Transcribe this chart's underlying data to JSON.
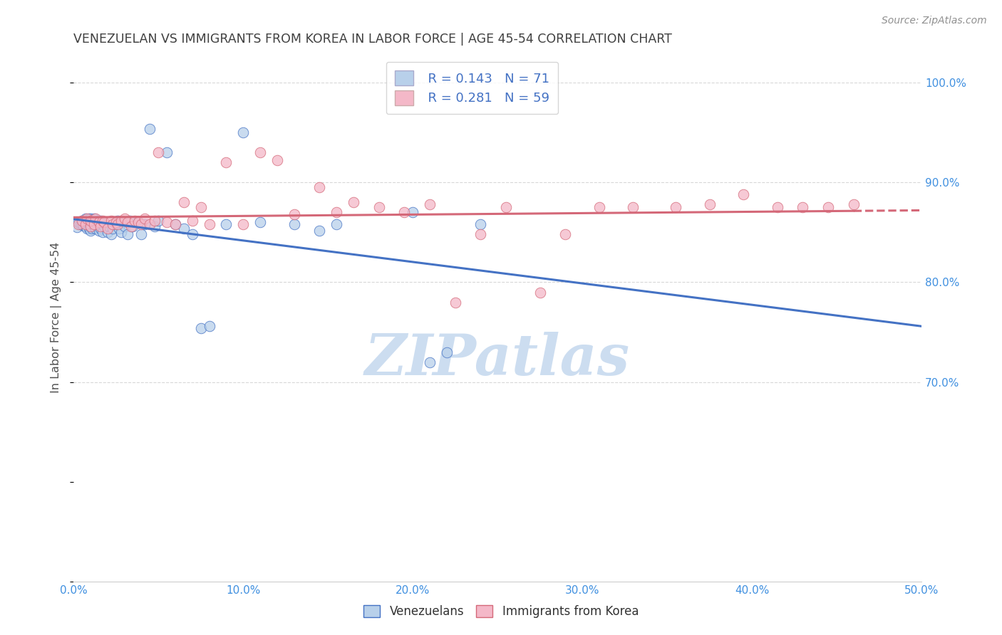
{
  "title": "VENEZUELAN VS IMMIGRANTS FROM KOREA IN LABOR FORCE | AGE 45-54 CORRELATION CHART",
  "source": "Source: ZipAtlas.com",
  "ylabel": "In Labor Force | Age 45-54",
  "xlim": [
    0.0,
    0.5
  ],
  "ylim": [
    0.5,
    1.03
  ],
  "xticks": [
    0.0,
    0.1,
    0.2,
    0.3,
    0.4,
    0.5
  ],
  "xtick_labels": [
    "0.0%",
    "10.0%",
    "20.0%",
    "30.0%",
    "40.0%",
    "50.0%"
  ],
  "yticks_right": [
    0.7,
    0.8,
    0.9,
    1.0
  ],
  "ytick_labels_right": [
    "70.0%",
    "80.0%",
    "90.0%",
    "100.0%"
  ],
  "legend_r1": "R = 0.143",
  "legend_n1": "N = 71",
  "legend_r2": "R = 0.281",
  "legend_n2": "N = 59",
  "color_blue": "#b8d0ea",
  "color_pink": "#f4b8c8",
  "line_color_blue": "#4472c4",
  "line_color_pink": "#d46878",
  "title_color": "#404040",
  "axis_label_color": "#505050",
  "tick_color": "#4090e0",
  "source_color": "#909090",
  "venezuelans_x": [
    0.002,
    0.003,
    0.004,
    0.005,
    0.005,
    0.006,
    0.006,
    0.007,
    0.007,
    0.007,
    0.008,
    0.008,
    0.008,
    0.009,
    0.009,
    0.009,
    0.01,
    0.01,
    0.01,
    0.01,
    0.011,
    0.011,
    0.012,
    0.012,
    0.012,
    0.013,
    0.013,
    0.014,
    0.014,
    0.015,
    0.015,
    0.016,
    0.016,
    0.017,
    0.017,
    0.018,
    0.019,
    0.02,
    0.021,
    0.022,
    0.023,
    0.025,
    0.026,
    0.027,
    0.028,
    0.03,
    0.032,
    0.033,
    0.035,
    0.038,
    0.04,
    0.042,
    0.045,
    0.048,
    0.05,
    0.055,
    0.06,
    0.065,
    0.07,
    0.075,
    0.08,
    0.09,
    0.1,
    0.11,
    0.13,
    0.145,
    0.155,
    0.2,
    0.21,
    0.22,
    0.24
  ],
  "venezuelans_y": [
    0.855,
    0.86,
    0.858,
    0.862,
    0.858,
    0.857,
    0.86,
    0.856,
    0.86,
    0.864,
    0.854,
    0.858,
    0.862,
    0.854,
    0.86,
    0.864,
    0.852,
    0.856,
    0.86,
    0.864,
    0.854,
    0.86,
    0.856,
    0.86,
    0.864,
    0.854,
    0.86,
    0.856,
    0.862,
    0.852,
    0.858,
    0.854,
    0.862,
    0.85,
    0.86,
    0.856,
    0.858,
    0.85,
    0.856,
    0.848,
    0.854,
    0.858,
    0.862,
    0.854,
    0.85,
    0.856,
    0.848,
    0.862,
    0.856,
    0.86,
    0.848,
    0.858,
    0.954,
    0.856,
    0.862,
    0.93,
    0.858,
    0.854,
    0.848,
    0.754,
    0.756,
    0.858,
    0.95,
    0.86,
    0.858,
    0.852,
    0.858,
    0.87,
    0.72,
    0.73,
    0.858
  ],
  "korea_x": [
    0.003,
    0.005,
    0.007,
    0.008,
    0.01,
    0.01,
    0.012,
    0.013,
    0.015,
    0.016,
    0.017,
    0.018,
    0.02,
    0.022,
    0.023,
    0.025,
    0.026,
    0.028,
    0.03,
    0.032,
    0.034,
    0.036,
    0.038,
    0.04,
    0.042,
    0.045,
    0.048,
    0.05,
    0.055,
    0.06,
    0.065,
    0.07,
    0.075,
    0.08,
    0.09,
    0.1,
    0.11,
    0.12,
    0.13,
    0.145,
    0.155,
    0.165,
    0.18,
    0.195,
    0.21,
    0.225,
    0.24,
    0.255,
    0.275,
    0.29,
    0.31,
    0.33,
    0.355,
    0.375,
    0.395,
    0.415,
    0.43,
    0.445,
    0.46
  ],
  "korea_y": [
    0.858,
    0.862,
    0.858,
    0.864,
    0.856,
    0.862,
    0.858,
    0.864,
    0.86,
    0.856,
    0.862,
    0.86,
    0.854,
    0.862,
    0.858,
    0.86,
    0.858,
    0.862,
    0.864,
    0.86,
    0.856,
    0.862,
    0.86,
    0.858,
    0.864,
    0.858,
    0.862,
    0.93,
    0.86,
    0.858,
    0.88,
    0.862,
    0.875,
    0.858,
    0.92,
    0.858,
    0.93,
    0.922,
    0.868,
    0.895,
    0.87,
    0.88,
    0.875,
    0.87,
    0.878,
    0.78,
    0.848,
    0.875,
    0.79,
    0.848,
    0.875,
    0.875,
    0.875,
    0.878,
    0.888,
    0.875,
    0.875,
    0.875,
    0.878
  ],
  "grid_color": "#d8d8d8",
  "background_color": "#ffffff",
  "watermark_text": "ZIPatlas",
  "watermark_color": "#ccddf0"
}
